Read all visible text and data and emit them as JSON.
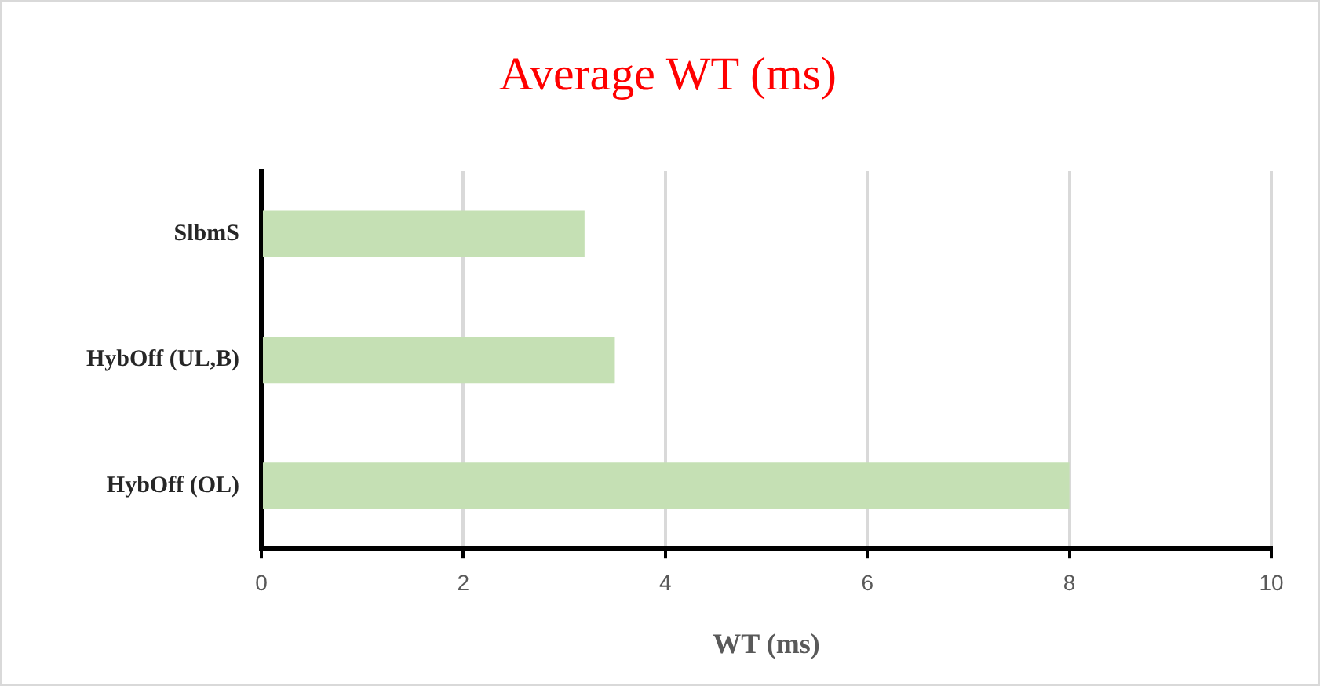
{
  "chart_data": {
    "type": "bar",
    "orientation": "horizontal",
    "title": "Average WT (ms)",
    "xlabel": "WT (ms)",
    "categories": [
      "SlbmS",
      "HybOff (UL,B)",
      "HybOff (OL)"
    ],
    "values": [
      3.2,
      3.5,
      8
    ],
    "color": "#c5e0b4",
    "xlim": [
      0,
      10
    ],
    "xticks": [
      0,
      2,
      4,
      6,
      8,
      10
    ],
    "grid": "x",
    "legend": false
  }
}
